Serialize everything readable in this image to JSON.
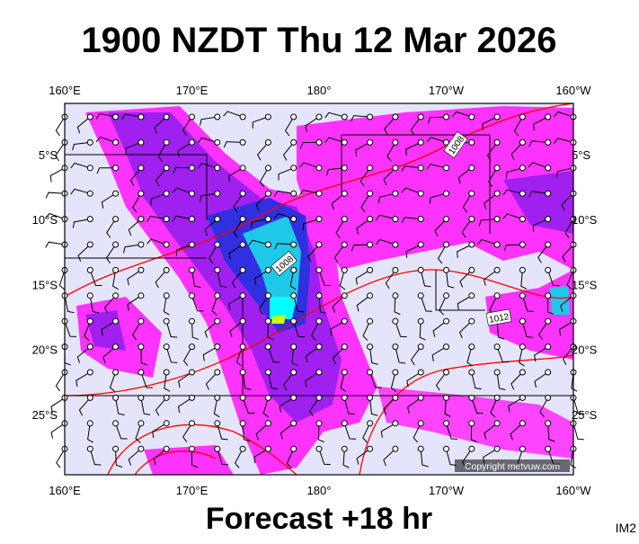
{
  "header": {
    "title": "1900 NZDT Thu 12 Mar 2026"
  },
  "map": {
    "lon_labels": [
      "160°E",
      "170°E",
      "180°",
      "170°W",
      "160°W"
    ],
    "lat_labels": [
      "5°S",
      "10°S",
      "15°S",
      "20°S",
      "25°S"
    ],
    "contour_labels": [
      "1008",
      "1008",
      "1012"
    ],
    "copyright": "Copyright metvuw.com"
  },
  "footer": {
    "forecast": "Forecast +18 hr",
    "code": "IM2"
  }
}
